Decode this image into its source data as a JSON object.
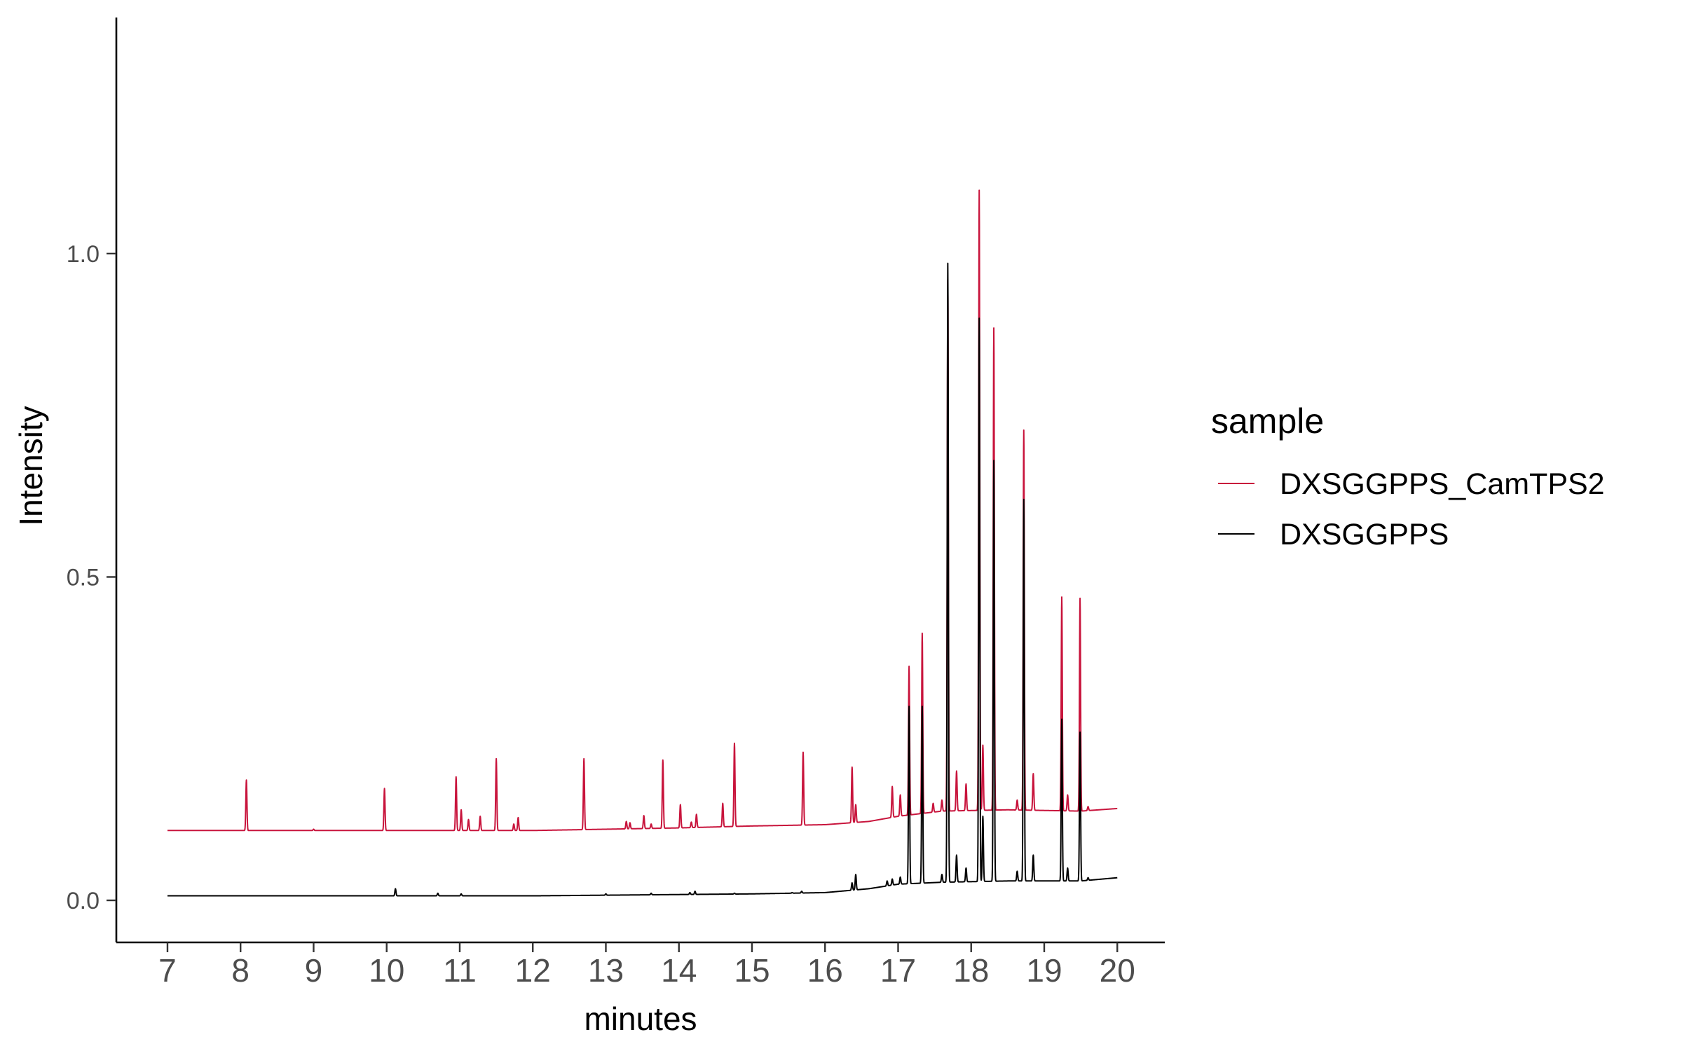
{
  "chart_data": {
    "type": "line",
    "title": "",
    "xlabel": "minutes",
    "ylabel": "Intensity",
    "xlim": [
      6.3,
      20.65
    ],
    "ylim": [
      -0.065,
      1.365
    ],
    "x_ticks": [
      7,
      8,
      9,
      10,
      11,
      12,
      13,
      14,
      15,
      16,
      17,
      18,
      19,
      20
    ],
    "x_tick_labels": [
      "7",
      "8",
      "9",
      "10",
      "11",
      "12",
      "13",
      "14",
      "15",
      "16",
      "17",
      "18",
      "19",
      "20"
    ],
    "y_ticks": [
      0.0,
      0.5,
      1.0
    ],
    "y_tick_labels": [
      "0.0",
      "0.5",
      "1.0"
    ],
    "grid": false,
    "legend": {
      "title": "sample",
      "position": "right",
      "entries": [
        "DXSGGPPS_CamTPS2",
        "DXSGGPPS"
      ]
    },
    "series": [
      {
        "name": "DXSGGPPS_CamTPS2",
        "color": "#c8143c",
        "baseline": [
          [
            7.0,
            0.108
          ],
          [
            12.0,
            0.108
          ],
          [
            14.0,
            0.112
          ],
          [
            15.0,
            0.115
          ],
          [
            16.0,
            0.117
          ],
          [
            16.6,
            0.122
          ],
          [
            17.0,
            0.13
          ],
          [
            17.6,
            0.138
          ],
          [
            18.5,
            0.14
          ],
          [
            19.5,
            0.138
          ],
          [
            20.0,
            0.142
          ]
        ],
        "peaks": [
          {
            "x": 8.08,
            "y": 0.186
          },
          {
            "x": 9.0,
            "y": 0.11
          },
          {
            "x": 9.97,
            "y": 0.173
          },
          {
            "x": 10.95,
            "y": 0.191
          },
          {
            "x": 11.02,
            "y": 0.14
          },
          {
            "x": 11.12,
            "y": 0.125
          },
          {
            "x": 11.28,
            "y": 0.13
          },
          {
            "x": 11.5,
            "y": 0.219
          },
          {
            "x": 11.74,
            "y": 0.118
          },
          {
            "x": 11.8,
            "y": 0.128
          },
          {
            "x": 12.7,
            "y": 0.219
          },
          {
            "x": 13.28,
            "y": 0.122
          },
          {
            "x": 13.33,
            "y": 0.12
          },
          {
            "x": 13.52,
            "y": 0.131
          },
          {
            "x": 13.62,
            "y": 0.118
          },
          {
            "x": 13.78,
            "y": 0.217
          },
          {
            "x": 14.02,
            "y": 0.148
          },
          {
            "x": 14.17,
            "y": 0.121
          },
          {
            "x": 14.24,
            "y": 0.133
          },
          {
            "x": 14.6,
            "y": 0.15
          },
          {
            "x": 14.76,
            "y": 0.243
          },
          {
            "x": 15.7,
            "y": 0.229
          },
          {
            "x": 16.37,
            "y": 0.206
          },
          {
            "x": 16.42,
            "y": 0.148
          },
          {
            "x": 16.92,
            "y": 0.176
          },
          {
            "x": 17.03,
            "y": 0.163
          },
          {
            "x": 17.15,
            "y": 0.362
          },
          {
            "x": 17.33,
            "y": 0.413
          },
          {
            "x": 17.48,
            "y": 0.15
          },
          {
            "x": 17.6,
            "y": 0.155
          },
          {
            "x": 17.68,
            "y": 0.96
          },
          {
            "x": 17.8,
            "y": 0.2
          },
          {
            "x": 17.93,
            "y": 0.18
          },
          {
            "x": 18.11,
            "y": 1.098
          },
          {
            "x": 18.16,
            "y": 0.24
          },
          {
            "x": 18.31,
            "y": 0.885
          },
          {
            "x": 18.63,
            "y": 0.155
          },
          {
            "x": 18.72,
            "y": 0.727
          },
          {
            "x": 18.85,
            "y": 0.196
          },
          {
            "x": 19.24,
            "y": 0.469
          },
          {
            "x": 19.32,
            "y": 0.163
          },
          {
            "x": 19.49,
            "y": 0.467
          },
          {
            "x": 19.6,
            "y": 0.145
          }
        ]
      },
      {
        "name": "DXSGGPPS",
        "color": "#000000",
        "baseline": [
          [
            7.0,
            0.007
          ],
          [
            12.0,
            0.007
          ],
          [
            14.0,
            0.009
          ],
          [
            15.0,
            0.01
          ],
          [
            16.0,
            0.012
          ],
          [
            16.6,
            0.018
          ],
          [
            17.0,
            0.025
          ],
          [
            17.6,
            0.028
          ],
          [
            18.5,
            0.03
          ],
          [
            19.5,
            0.03
          ],
          [
            20.0,
            0.035
          ]
        ],
        "peaks": [
          {
            "x": 10.12,
            "y": 0.018
          },
          {
            "x": 10.7,
            "y": 0.011
          },
          {
            "x": 11.02,
            "y": 0.01
          },
          {
            "x": 13.0,
            "y": 0.01
          },
          {
            "x": 13.62,
            "y": 0.011
          },
          {
            "x": 14.15,
            "y": 0.012
          },
          {
            "x": 14.22,
            "y": 0.014
          },
          {
            "x": 14.76,
            "y": 0.011
          },
          {
            "x": 15.55,
            "y": 0.012
          },
          {
            "x": 15.68,
            "y": 0.014
          },
          {
            "x": 16.37,
            "y": 0.027
          },
          {
            "x": 16.42,
            "y": 0.04
          },
          {
            "x": 16.85,
            "y": 0.03
          },
          {
            "x": 16.92,
            "y": 0.033
          },
          {
            "x": 17.03,
            "y": 0.036
          },
          {
            "x": 17.15,
            "y": 0.3
          },
          {
            "x": 17.33,
            "y": 0.3
          },
          {
            "x": 17.6,
            "y": 0.04
          },
          {
            "x": 17.68,
            "y": 0.985
          },
          {
            "x": 17.8,
            "y": 0.07
          },
          {
            "x": 17.93,
            "y": 0.05
          },
          {
            "x": 18.11,
            "y": 0.9
          },
          {
            "x": 18.16,
            "y": 0.13
          },
          {
            "x": 18.31,
            "y": 0.68
          },
          {
            "x": 18.63,
            "y": 0.045
          },
          {
            "x": 18.72,
            "y": 0.62
          },
          {
            "x": 18.85,
            "y": 0.07
          },
          {
            "x": 19.24,
            "y": 0.28
          },
          {
            "x": 19.32,
            "y": 0.05
          },
          {
            "x": 19.49,
            "y": 0.26
          },
          {
            "x": 19.6,
            "y": 0.035
          }
        ]
      }
    ]
  }
}
